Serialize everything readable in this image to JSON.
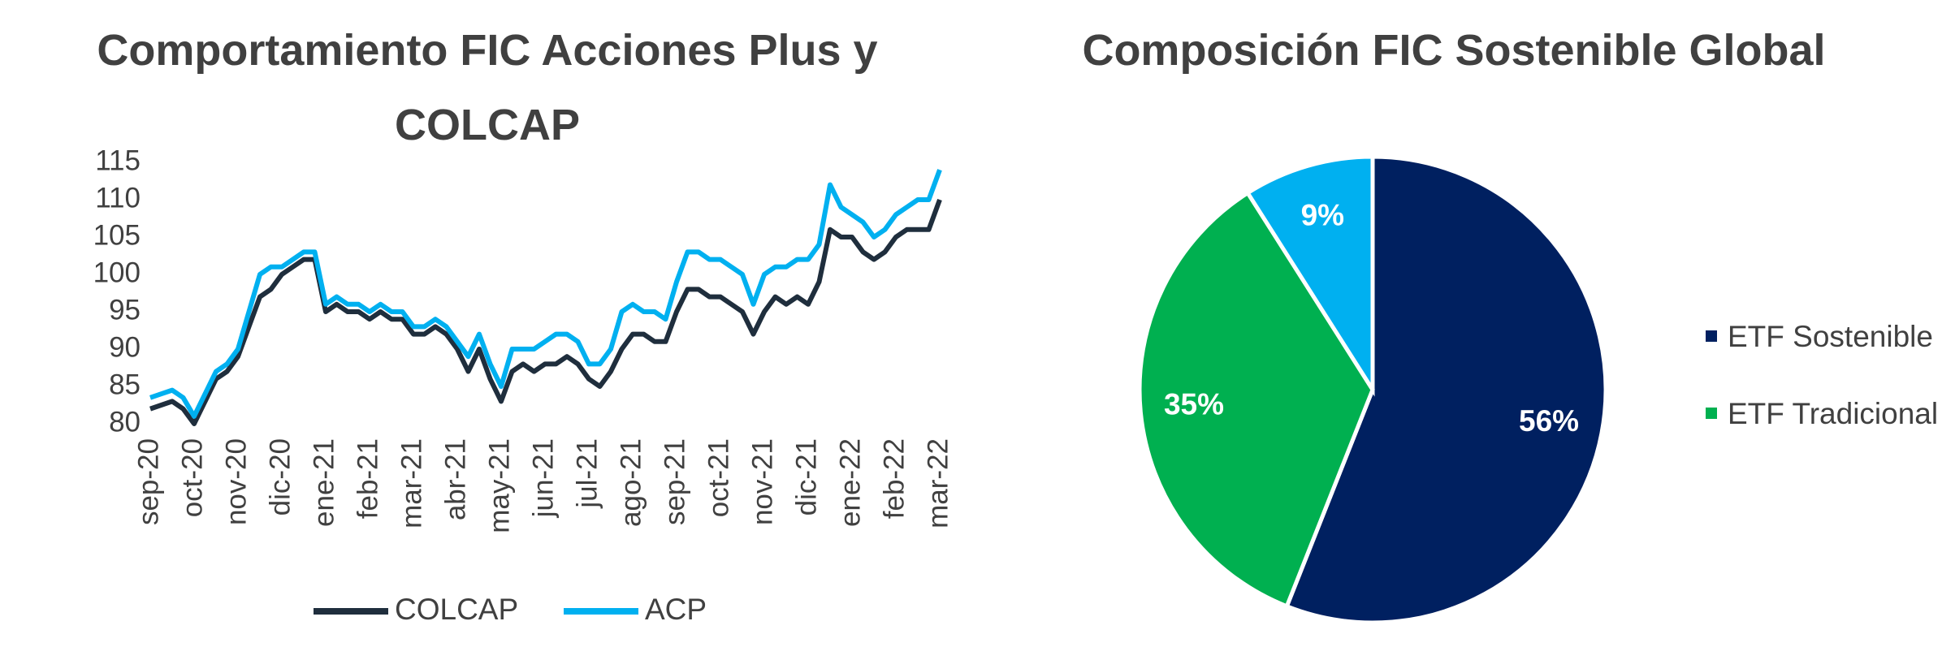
{
  "chart_data": [
    {
      "type": "line",
      "title": "Comportamiento FIC Acciones Plus y COLCAP",
      "categories": [
        "sep-20",
        null,
        null,
        null,
        "oct-20",
        null,
        null,
        null,
        "nov-20",
        null,
        null,
        null,
        "dic-20",
        null,
        null,
        null,
        "ene-21",
        null,
        null,
        null,
        "feb-21",
        null,
        null,
        null,
        "mar-21",
        null,
        null,
        null,
        "abr-21",
        null,
        null,
        null,
        "may-21",
        null,
        null,
        null,
        "jun-21",
        null,
        null,
        null,
        "jul-21",
        null,
        null,
        null,
        "ago-21",
        null,
        null,
        null,
        "sep-21",
        null,
        null,
        null,
        "oct-21",
        null,
        null,
        null,
        "nov-21",
        null,
        null,
        null,
        "dic-21",
        null,
        null,
        null,
        "ene-22",
        null,
        null,
        null,
        "feb-22",
        null,
        null,
        null,
        "mar-22"
      ],
      "series": [
        {
          "name": "COLCAP",
          "color": "#1f2e3d",
          "values": [
            82,
            82.5,
            83,
            82,
            80,
            83,
            86,
            87,
            89,
            93,
            97,
            98,
            100,
            101,
            102,
            102,
            95,
            96,
            95,
            95,
            94,
            95,
            94,
            94,
            92,
            92,
            93,
            92,
            90,
            87,
            90,
            86,
            83,
            87,
            88,
            87,
            88,
            88,
            89,
            88,
            86,
            85,
            87,
            90,
            92,
            92,
            91,
            91,
            95,
            98,
            98,
            97,
            97,
            96,
            95,
            92,
            95,
            97,
            96,
            97,
            96,
            99,
            106,
            105,
            105,
            103,
            102,
            103,
            105,
            106,
            106,
            106,
            110
          ]
        },
        {
          "name": "ACP",
          "color": "#00b0f0",
          "values": [
            83.5,
            84,
            84.5,
            83.5,
            81,
            84,
            87,
            88,
            90,
            95,
            100,
            101,
            101,
            102,
            103,
            103,
            96,
            97,
            96,
            96,
            95,
            96,
            95,
            95,
            93,
            93,
            94,
            93,
            91,
            89,
            92,
            88,
            85,
            90,
            90,
            90,
            91,
            92,
            92,
            91,
            88,
            88,
            90,
            95,
            96,
            95,
            95,
            94,
            99,
            103,
            103,
            102,
            102,
            101,
            100,
            96,
            100,
            101,
            101,
            102,
            102,
            104,
            112,
            109,
            108,
            107,
            105,
            106,
            108,
            109,
            110,
            110,
            114
          ]
        }
      ],
      "ylim": [
        80,
        115
      ],
      "yticks": [
        80,
        85,
        90,
        95,
        100,
        105,
        110,
        115
      ],
      "grid": false,
      "legend": "bottom"
    },
    {
      "type": "pie",
      "title": "Composición FIC Sostenible Global",
      "categories": [
        "ETF Sostenible",
        "ETF Tradicional",
        null
      ],
      "values": [
        56,
        35,
        9
      ],
      "value_labels": [
        "56%",
        "35%",
        "9%"
      ],
      "colors": [
        "#002060",
        "#00b050",
        "#00b0f0"
      ],
      "legend": "right"
    }
  ]
}
